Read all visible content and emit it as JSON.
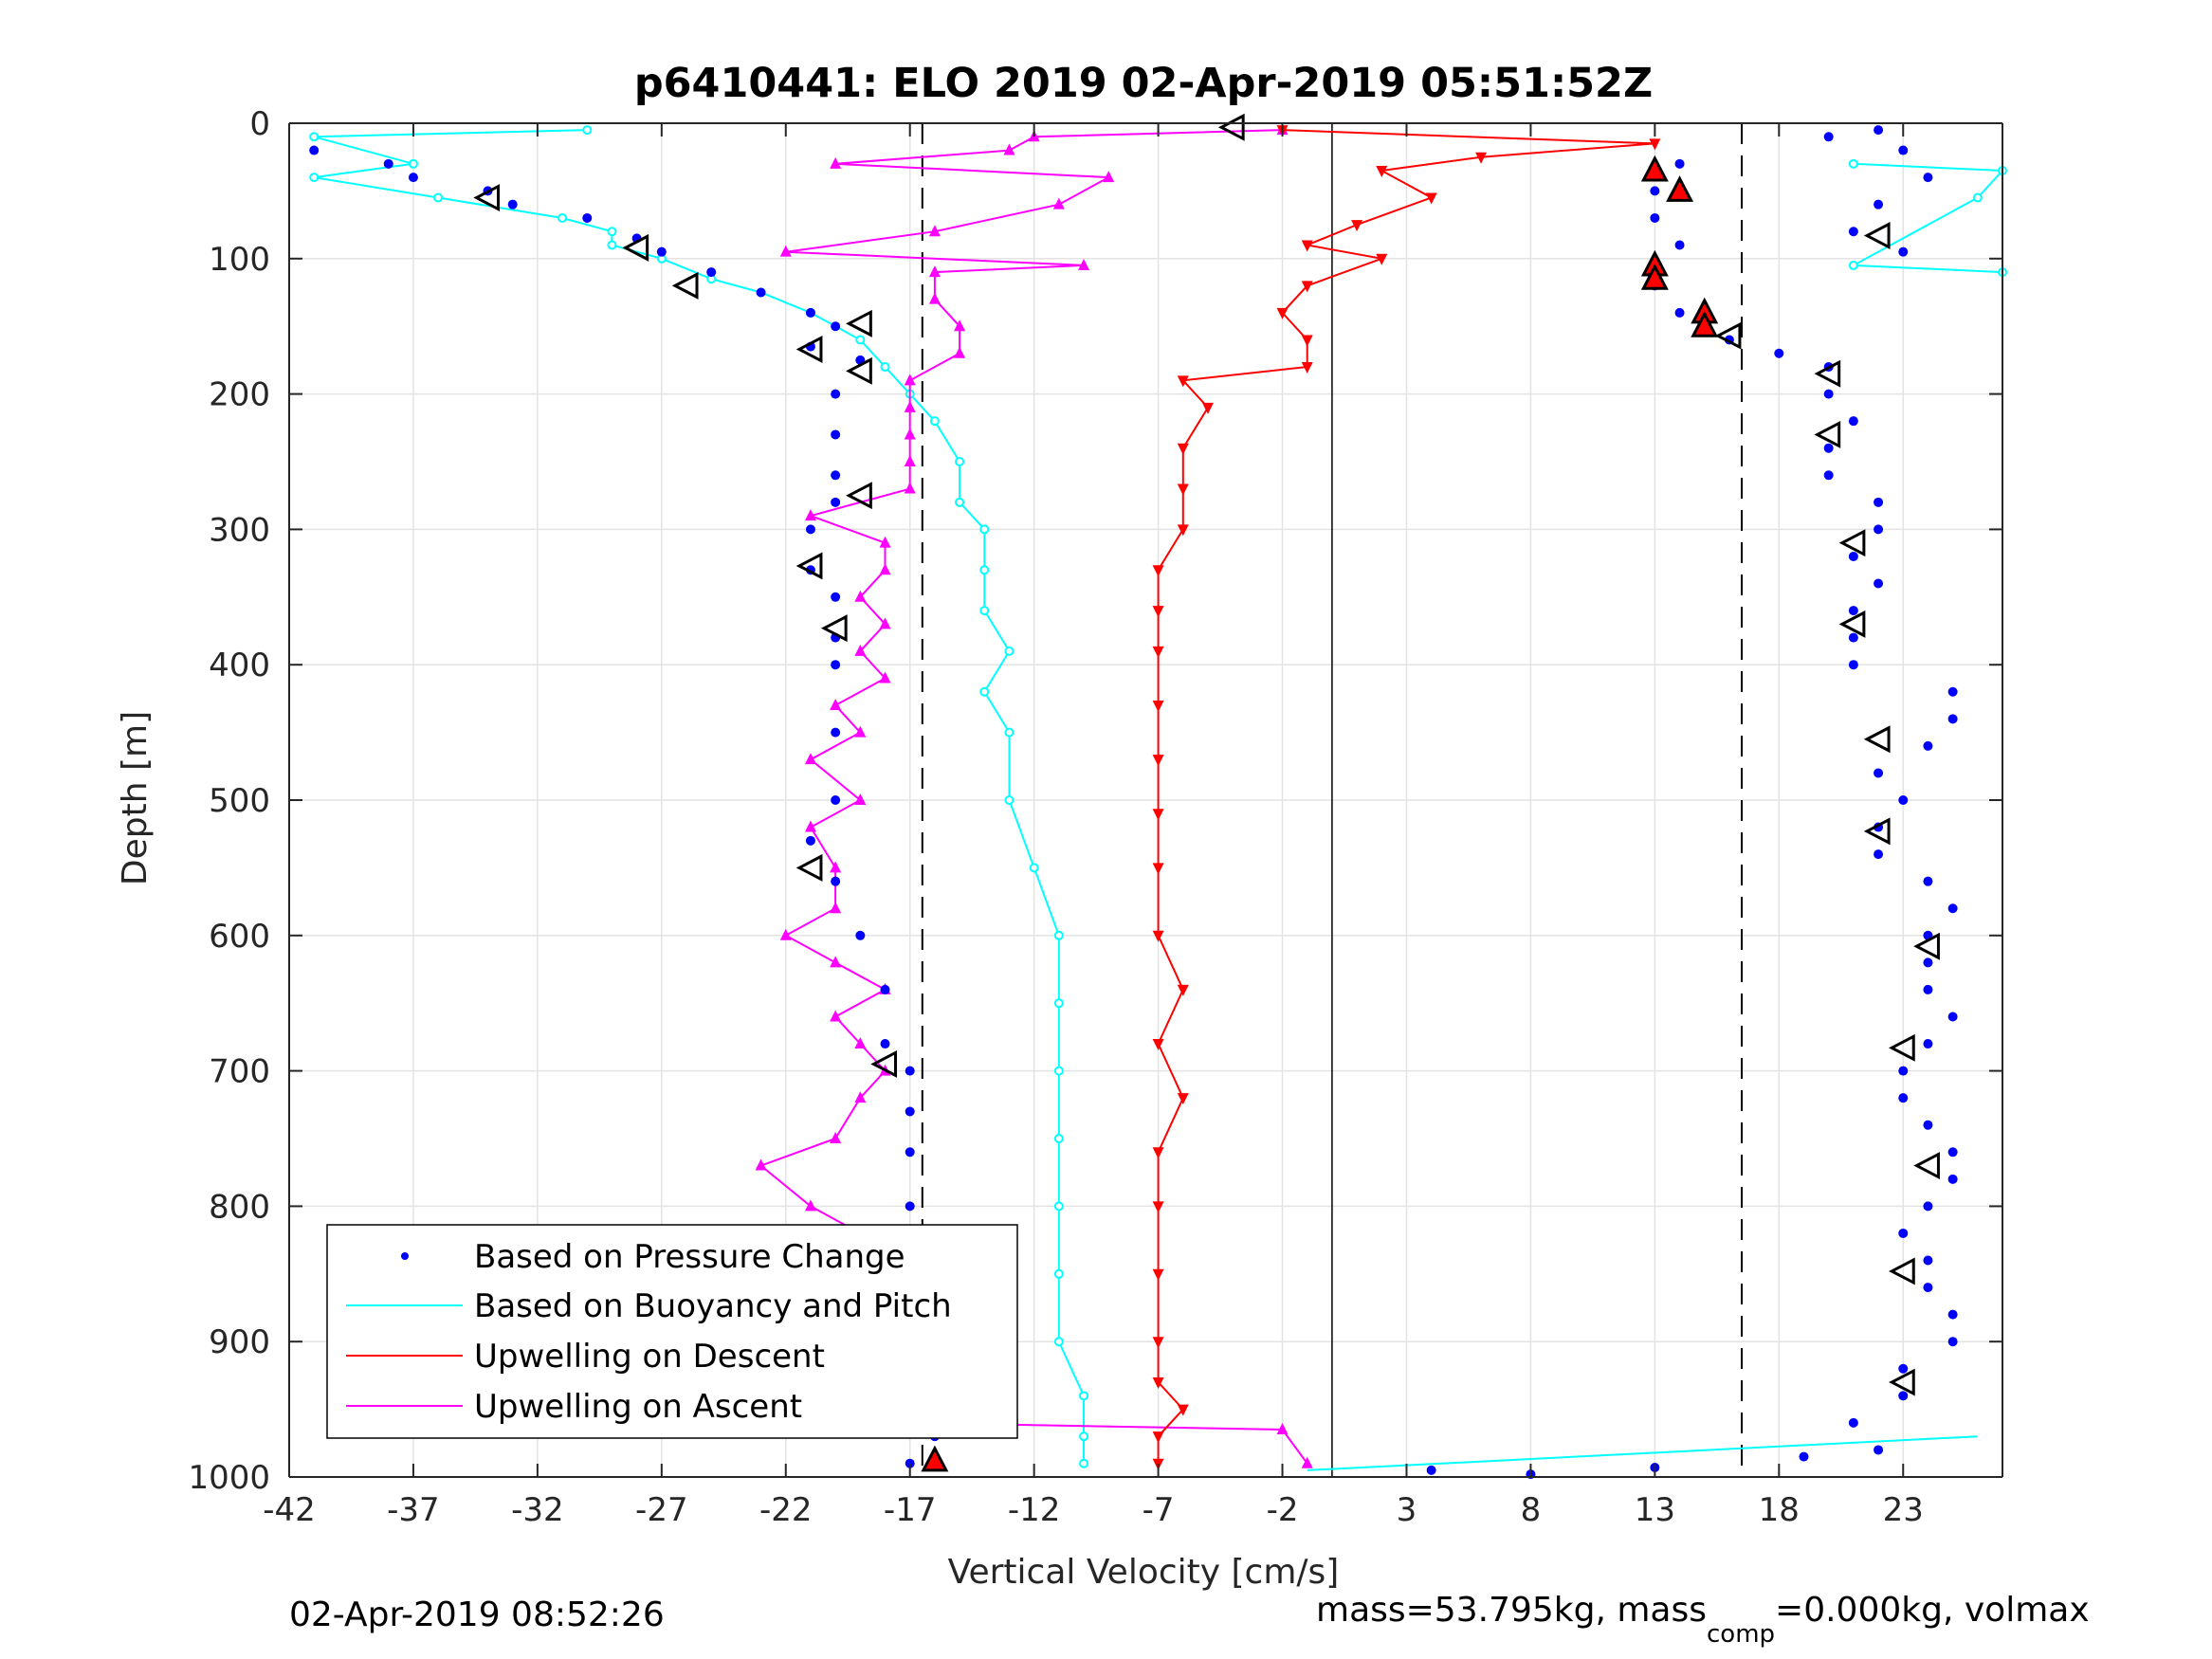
{
  "chart_data": {
    "type": "scatter",
    "title": "p6410441: ELO 2019 02-Apr-2019 05:51:52Z",
    "xlabel": "Vertical Velocity [cm/s]",
    "ylabel": "Depth [m]",
    "xlim": [
      -42,
      27
    ],
    "ylim": [
      0,
      1000
    ],
    "y_reversed": true,
    "grid": true,
    "xticks": [
      -42,
      -37,
      -32,
      -27,
      -22,
      -17,
      -12,
      -7,
      -2,
      3,
      8,
      13,
      18,
      23
    ],
    "yticks": [
      0,
      100,
      200,
      300,
      400,
      500,
      600,
      700,
      800,
      900,
      1000
    ],
    "reference_lines": {
      "solid_x": 0,
      "dashed_x": [
        -16.5,
        16.5
      ]
    },
    "legend_position": "bottom-left",
    "footer_left": "02-Apr-2019 08:52:26",
    "footer_right_main": "mass=53.795kg, mass",
    "footer_right_sub": "comp",
    "footer_right_tail": "=0.000kg, volmax",
    "series": [
      {
        "name": "Based on Pressure Change",
        "color": "#0000ff",
        "descent": [
          [
            -41,
            20
          ],
          [
            -38,
            30
          ],
          [
            -37,
            40
          ],
          [
            -34,
            50
          ],
          [
            -33,
            60
          ],
          [
            -30,
            70
          ],
          [
            -28,
            85
          ],
          [
            -27,
            95
          ],
          [
            -25,
            110
          ],
          [
            -23,
            125
          ],
          [
            -21,
            140
          ],
          [
            -20,
            150
          ],
          [
            -21,
            165
          ],
          [
            -19,
            175
          ],
          [
            -20,
            200
          ],
          [
            -20,
            230
          ],
          [
            -20,
            260
          ],
          [
            -20,
            280
          ],
          [
            -21,
            300
          ],
          [
            -21,
            330
          ],
          [
            -20,
            350
          ],
          [
            -20,
            380
          ],
          [
            -20,
            400
          ],
          [
            -20,
            450
          ],
          [
            -20,
            500
          ],
          [
            -21,
            530
          ],
          [
            -20,
            560
          ],
          [
            -19,
            600
          ],
          [
            -18,
            640
          ],
          [
            -18,
            680
          ],
          [
            -17,
            700
          ],
          [
            -17,
            730
          ],
          [
            -17,
            760
          ],
          [
            -17,
            800
          ],
          [
            -17,
            840
          ],
          [
            -17,
            880
          ],
          [
            -17,
            920
          ],
          [
            -17,
            950
          ],
          [
            -16,
            970
          ],
          [
            -17,
            990
          ]
        ],
        "ascent": [
          [
            4,
            995
          ],
          [
            8,
            998
          ],
          [
            13,
            993
          ],
          [
            19,
            985
          ],
          [
            22,
            980
          ],
          [
            21,
            960
          ],
          [
            23,
            940
          ],
          [
            23,
            920
          ],
          [
            25,
            900
          ],
          [
            25,
            880
          ],
          [
            24,
            860
          ],
          [
            24,
            840
          ],
          [
            23,
            820
          ],
          [
            24,
            800
          ],
          [
            25,
            780
          ],
          [
            25,
            760
          ],
          [
            24,
            740
          ],
          [
            23,
            720
          ],
          [
            23,
            700
          ],
          [
            24,
            680
          ],
          [
            25,
            660
          ],
          [
            24,
            640
          ],
          [
            24,
            620
          ],
          [
            24,
            600
          ],
          [
            25,
            580
          ],
          [
            24,
            560
          ],
          [
            22,
            540
          ],
          [
            22,
            520
          ],
          [
            23,
            500
          ],
          [
            22,
            480
          ],
          [
            24,
            460
          ],
          [
            25,
            440
          ],
          [
            25,
            420
          ],
          [
            21,
            400
          ],
          [
            21,
            380
          ],
          [
            21,
            360
          ],
          [
            22,
            340
          ],
          [
            21,
            320
          ],
          [
            22,
            300
          ],
          [
            22,
            280
          ],
          [
            20,
            260
          ],
          [
            20,
            240
          ],
          [
            21,
            220
          ],
          [
            20,
            200
          ],
          [
            20,
            180
          ],
          [
            18,
            170
          ],
          [
            16,
            160
          ],
          [
            15,
            150
          ],
          [
            14,
            140
          ],
          [
            13,
            120
          ],
          [
            13,
            110
          ],
          [
            14,
            90
          ],
          [
            13,
            70
          ],
          [
            13,
            50
          ],
          [
            14,
            30
          ],
          [
            20,
            10
          ],
          [
            22,
            5
          ],
          [
            23,
            20
          ],
          [
            24,
            40
          ],
          [
            22,
            60
          ],
          [
            21,
            80
          ],
          [
            23,
            95
          ]
        ]
      },
      {
        "name": "Based on Buoyancy and Pitch",
        "color": "#00ffff",
        "descent": [
          [
            -30,
            5
          ],
          [
            -41,
            10
          ],
          [
            -37,
            30
          ],
          [
            -41,
            40
          ],
          [
            -36,
            55
          ],
          [
            -31,
            70
          ],
          [
            -29,
            80
          ],
          [
            -29,
            90
          ],
          [
            -27,
            100
          ],
          [
            -25,
            115
          ],
          [
            -23,
            125
          ],
          [
            -21,
            140
          ],
          [
            -19,
            160
          ],
          [
            -18,
            180
          ],
          [
            -17,
            200
          ],
          [
            -16,
            220
          ],
          [
            -15,
            250
          ],
          [
            -15,
            280
          ],
          [
            -14,
            300
          ],
          [
            -14,
            330
          ],
          [
            -14,
            360
          ],
          [
            -13,
            390
          ],
          [
            -14,
            420
          ],
          [
            -13,
            450
          ],
          [
            -13,
            500
          ],
          [
            -12,
            550
          ],
          [
            -11,
            600
          ],
          [
            -11,
            650
          ],
          [
            -11,
            700
          ],
          [
            -11,
            750
          ],
          [
            -11,
            800
          ],
          [
            -11,
            850
          ],
          [
            -11,
            900
          ],
          [
            -10,
            940
          ],
          [
            -10,
            970
          ],
          [
            -10,
            990
          ]
        ],
        "ascent": [
          [
            -1,
            995
          ],
          [
            26,
            970
          ]
        ],
        "surface": [
          [
            21,
            30
          ],
          [
            27,
            35
          ],
          [
            26,
            55
          ],
          [
            21,
            105
          ],
          [
            27,
            110
          ]
        ]
      },
      {
        "name": "Upwelling on Descent",
        "color": "#ff0000",
        "values": [
          [
            -2,
            5
          ],
          [
            13,
            15
          ],
          [
            6,
            25
          ],
          [
            2,
            35
          ],
          [
            4,
            55
          ],
          [
            1,
            75
          ],
          [
            -1,
            90
          ],
          [
            2,
            100
          ],
          [
            -1,
            120
          ],
          [
            -2,
            140
          ],
          [
            -1,
            160
          ],
          [
            -1,
            180
          ],
          [
            -6,
            190
          ],
          [
            -5,
            210
          ],
          [
            -6,
            240
          ],
          [
            -6,
            270
          ],
          [
            -6,
            300
          ],
          [
            -7,
            330
          ],
          [
            -7,
            360
          ],
          [
            -7,
            390
          ],
          [
            -7,
            430
          ],
          [
            -7,
            470
          ],
          [
            -7,
            510
          ],
          [
            -7,
            550
          ],
          [
            -7,
            600
          ],
          [
            -6,
            640
          ],
          [
            -7,
            680
          ],
          [
            -6,
            720
          ],
          [
            -7,
            760
          ],
          [
            -7,
            800
          ],
          [
            -7,
            850
          ],
          [
            -7,
            900
          ],
          [
            -7,
            930
          ],
          [
            -6,
            950
          ],
          [
            -7,
            970
          ],
          [
            -7,
            990
          ]
        ]
      },
      {
        "name": "Upwelling on Ascent",
        "color": "#ff00ff",
        "values": [
          [
            -1,
            990
          ],
          [
            -2,
            965
          ],
          [
            -17,
            960
          ],
          [
            -17,
            940
          ],
          [
            -17,
            920
          ],
          [
            -18,
            900
          ],
          [
            -19,
            880
          ],
          [
            -18,
            860
          ],
          [
            -20,
            840
          ],
          [
            -19,
            820
          ],
          [
            -21,
            800
          ],
          [
            -23,
            770
          ],
          [
            -20,
            750
          ],
          [
            -19,
            720
          ],
          [
            -18,
            700
          ],
          [
            -19,
            680
          ],
          [
            -20,
            660
          ],
          [
            -18,
            640
          ],
          [
            -20,
            620
          ],
          [
            -22,
            600
          ],
          [
            -20,
            580
          ],
          [
            -20,
            550
          ],
          [
            -21,
            520
          ],
          [
            -19,
            500
          ],
          [
            -21,
            470
          ],
          [
            -19,
            450
          ],
          [
            -20,
            430
          ],
          [
            -18,
            410
          ],
          [
            -19,
            390
          ],
          [
            -18,
            370
          ],
          [
            -19,
            350
          ],
          [
            -18,
            330
          ],
          [
            -18,
            310
          ],
          [
            -21,
            290
          ],
          [
            -17,
            270
          ],
          [
            -17,
            250
          ],
          [
            -17,
            230
          ],
          [
            -17,
            210
          ],
          [
            -17,
            190
          ],
          [
            -15,
            170
          ],
          [
            -15,
            150
          ],
          [
            -16,
            130
          ],
          [
            -16,
            110
          ],
          [
            -10,
            105
          ],
          [
            -22,
            95
          ],
          [
            -16,
            80
          ],
          [
            -11,
            60
          ],
          [
            -9,
            40
          ],
          [
            -20,
            30
          ],
          [
            -13,
            20
          ],
          [
            -12,
            10
          ],
          [
            -2,
            5
          ]
        ]
      },
      {
        "name": "Markers",
        "color": "#000000",
        "open_triangles": [
          [
            -4,
            3
          ],
          [
            -34,
            55
          ],
          [
            -28,
            92
          ],
          [
            -26,
            120
          ],
          [
            -19,
            148
          ],
          [
            -21,
            167
          ],
          [
            -19,
            183
          ],
          [
            -19,
            275
          ],
          [
            -21,
            327
          ],
          [
            -20,
            373
          ],
          [
            -21,
            550
          ],
          [
            -18,
            695
          ],
          [
            -17,
            932
          ],
          [
            22,
            83
          ],
          [
            16,
            157
          ],
          [
            20,
            185
          ],
          [
            20,
            230
          ],
          [
            21,
            310
          ],
          [
            21,
            370
          ],
          [
            22,
            455
          ],
          [
            22,
            523
          ],
          [
            24,
            608
          ],
          [
            23,
            683
          ],
          [
            24,
            770
          ],
          [
            23,
            848
          ],
          [
            23,
            930
          ]
        ],
        "red_triangles": [
          [
            13,
            35
          ],
          [
            14,
            50
          ],
          [
            13,
            105
          ],
          [
            13,
            115
          ],
          [
            15,
            140
          ],
          [
            15,
            150
          ],
          [
            -16,
            988
          ]
        ]
      }
    ]
  }
}
